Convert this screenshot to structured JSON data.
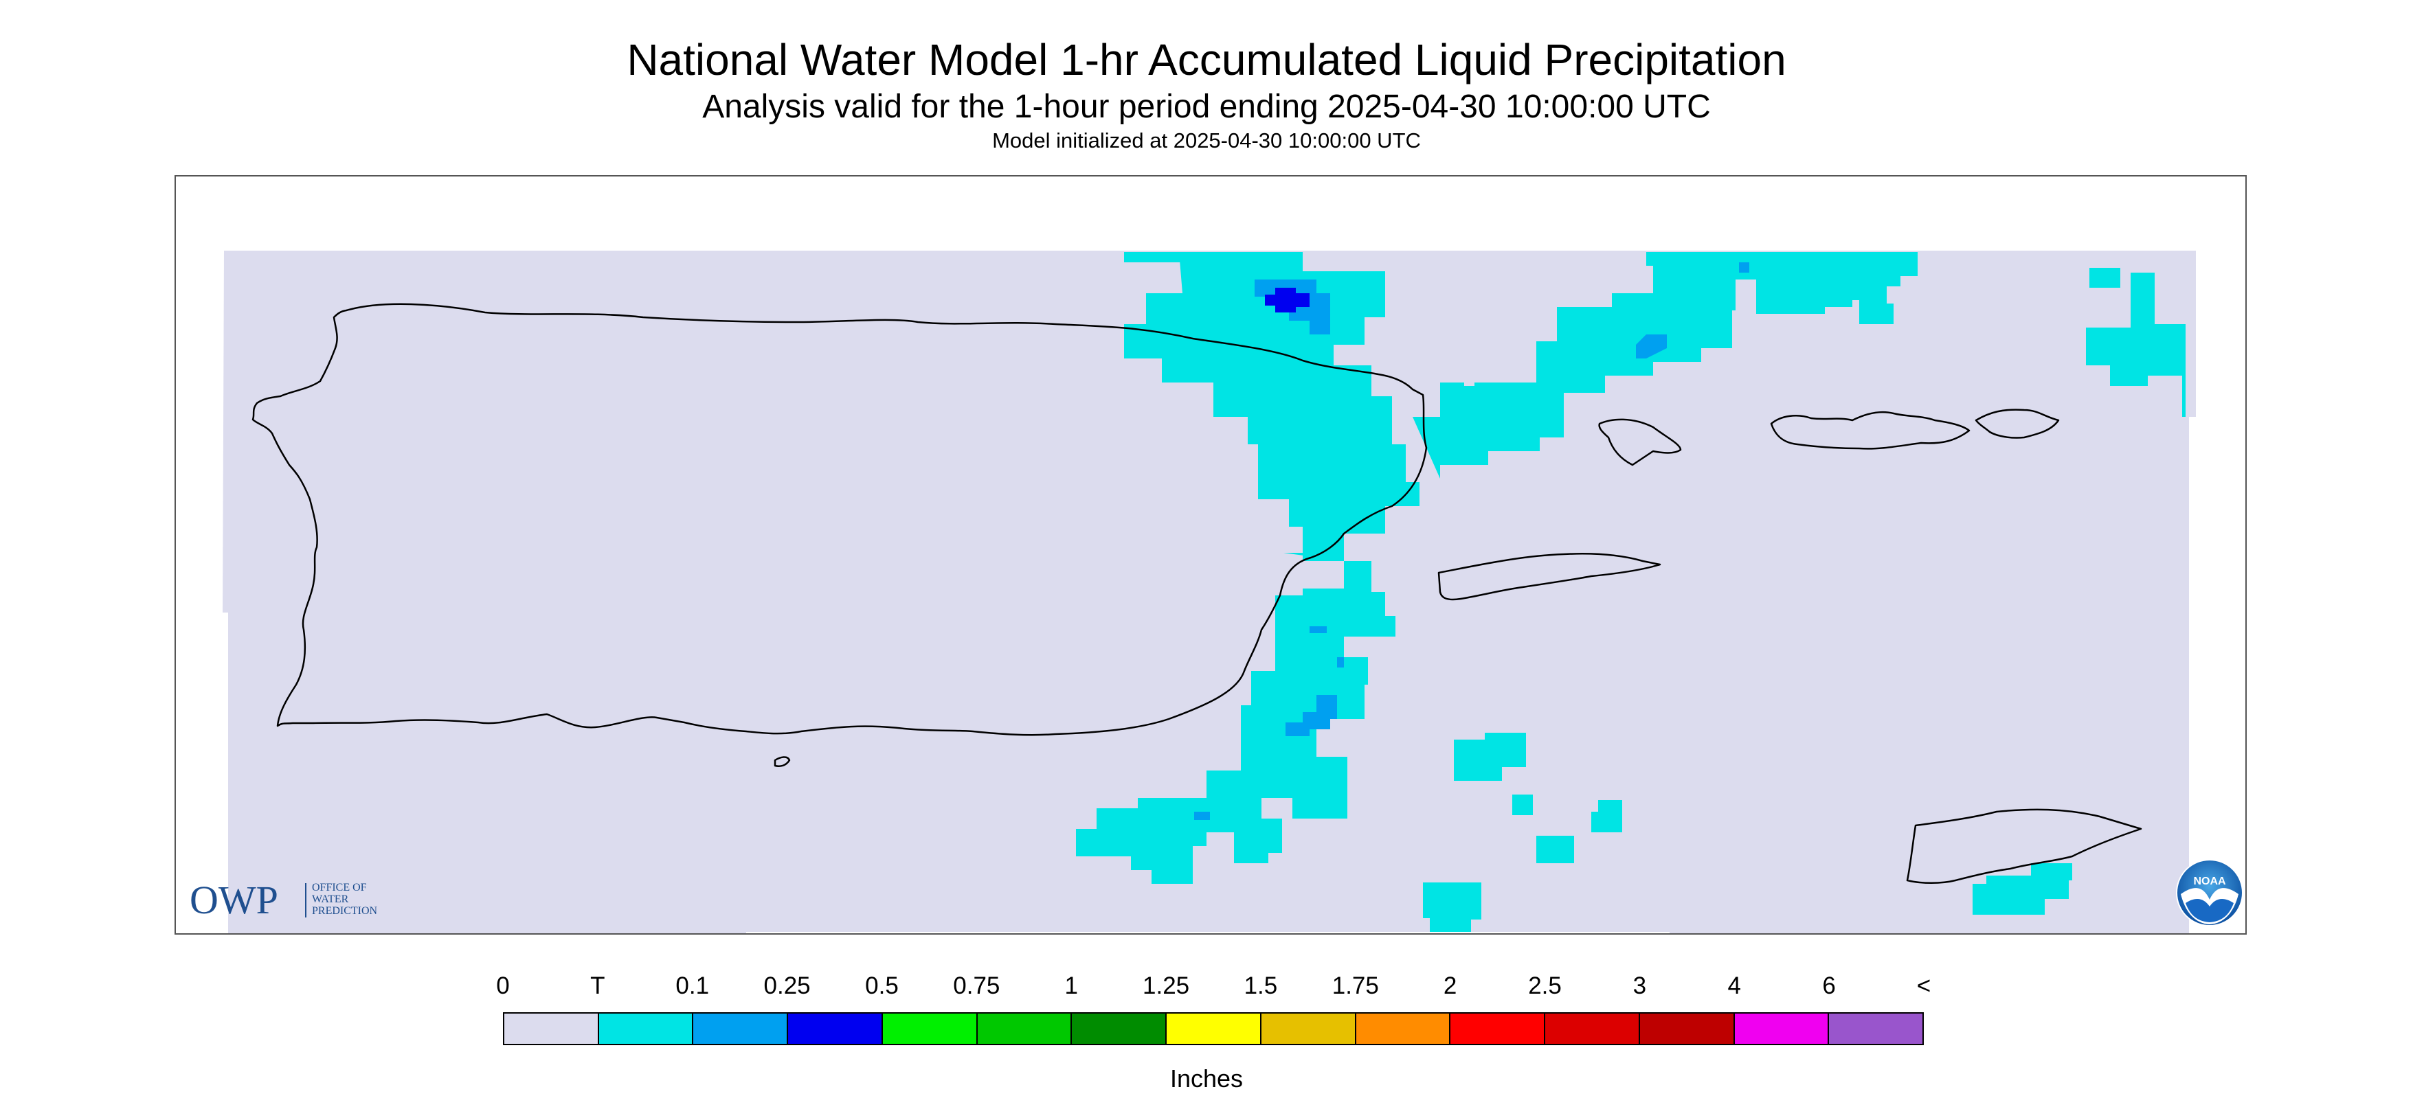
{
  "title": "National Water Model 1-hr Accumulated Liquid Precipitation",
  "subtitle": "Analysis valid for the 1-hour period ending 2025-04-30 10:00:00 UTC",
  "init": "Model initialized at 2025-04-30 10:00:00 UTC",
  "logos": {
    "owp_big": "OWP",
    "owp_lines": [
      "OFFICE OF",
      "WATER",
      "PREDICTION"
    ],
    "noaa": "NOAA"
  },
  "colors": {
    "no_data": "#ffffff",
    "zero": "#dcdcee",
    "trace": "#00e4e4",
    "p01": "#00a0f0",
    "p025": "#0000f0",
    "coast": "#000000"
  },
  "legend": {
    "units": "Inches",
    "labels": [
      "0",
      "T",
      "0.1",
      "0.25",
      "0.5",
      "0.75",
      "1",
      "1.25",
      "1.5",
      "1.75",
      "2",
      "2.5",
      "3",
      "4",
      "6",
      "<"
    ],
    "colors": [
      "#dcdcee",
      "#00e4e4",
      "#00a0f0",
      "#0000f0",
      "#00f000",
      "#00c800",
      "#008c00",
      "#ffff00",
      "#e6c000",
      "#ff8c00",
      "#ff0000",
      "#dc0000",
      "#be0000",
      "#f000f0",
      "#9955cc"
    ]
  }
}
